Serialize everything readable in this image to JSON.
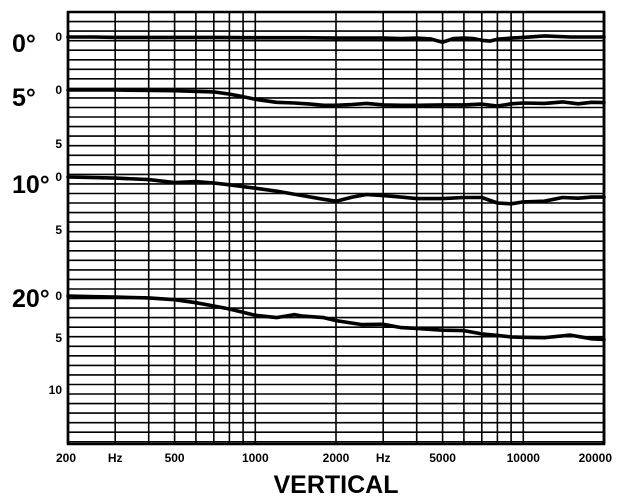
{
  "chart_data": {
    "type": "line",
    "title": "VERTICAL",
    "x_scale": "log",
    "xlim": [
      200,
      20000
    ],
    "x_ticks": [
      {
        "value": 200,
        "label": "200"
      },
      {
        "value": 300,
        "label": "Hz"
      },
      {
        "value": 500,
        "label": "500"
      },
      {
        "value": 1000,
        "label": "1000"
      },
      {
        "value": 2000,
        "label": "2000"
      },
      {
        "value": 3000,
        "label": "Hz"
      },
      {
        "value": 5000,
        "label": "5000"
      },
      {
        "value": 10000,
        "label": "10000"
      },
      {
        "value": 20000,
        "label": "20000"
      }
    ],
    "series": [
      {
        "angle_label": "0°",
        "offset_labels": [
          "0"
        ],
        "x": [
          200,
          250,
          300,
          400,
          500,
          700,
          1000,
          1500,
          2000,
          3000,
          3500,
          4000,
          4500,
          5000,
          5500,
          6000,
          6500,
          7000,
          7500,
          8000,
          9000,
          10000,
          12000,
          15000,
          20000
        ],
        "y": [
          0,
          0,
          0.1,
          0.1,
          0.1,
          0.1,
          0.2,
          0.2,
          0.3,
          0.3,
          0.4,
          0.3,
          0.5,
          1.4,
          0.4,
          0.3,
          0.4,
          0.9,
          1.1,
          0.6,
          0.3,
          0.1,
          -0.3,
          0,
          0
        ]
      },
      {
        "angle_label": "5°",
        "offset_labels": [
          "0",
          "5"
        ],
        "x": [
          200,
          300,
          500,
          700,
          800,
          900,
          1000,
          1200,
          1400,
          1600,
          1800,
          2000,
          2300,
          2600,
          3000,
          3500,
          4000,
          5000,
          6000,
          7000,
          8000,
          9000,
          10000,
          12000,
          14000,
          16000,
          18000,
          20000
        ],
        "y": [
          0,
          0,
          0.2,
          0.5,
          1.1,
          1.8,
          2.5,
          3.3,
          3.5,
          3.8,
          4.1,
          4.1,
          3.9,
          3.6,
          4.0,
          4.1,
          4.1,
          4.0,
          4.0,
          3.8,
          4.3,
          3.7,
          3.5,
          3.6,
          3.2,
          3.7,
          3.3,
          3.4
        ]
      },
      {
        "angle_label": "10°",
        "offset_labels": [
          "0",
          "5"
        ],
        "x": [
          200,
          300,
          400,
          500,
          600,
          700,
          800,
          1000,
          1200,
          1500,
          1800,
          2000,
          2300,
          2600,
          3000,
          3500,
          4000,
          5000,
          6000,
          7000,
          8000,
          9000,
          10000,
          12000,
          14000,
          16000,
          18000,
          20000
        ],
        "y": [
          0,
          0.3,
          0.7,
          1.5,
          1.2,
          1.6,
          2.1,
          3.0,
          3.8,
          5.0,
          6.0,
          6.5,
          5.4,
          4.7,
          5.0,
          5.4,
          5.8,
          5.8,
          5.5,
          5.5,
          7.0,
          7.2,
          6.7,
          6.5,
          5.5,
          5.7,
          5.4,
          5.4
        ]
      },
      {
        "angle_label": "20°",
        "offset_labels": [
          "0",
          "5",
          "10"
        ],
        "x": [
          200,
          250,
          300,
          400,
          500,
          600,
          700,
          800,
          1000,
          1200,
          1400,
          1500,
          1800,
          2000,
          2500,
          3000,
          3500,
          4000,
          5000,
          6000,
          7000,
          8000,
          9000,
          10000,
          12000,
          15000,
          18000,
          20000
        ],
        "y": [
          0,
          0.2,
          0.3,
          0.5,
          1.0,
          1.8,
          2.7,
          3.5,
          5.2,
          5.8,
          5.0,
          5.4,
          5.8,
          6.6,
          7.7,
          7.6,
          8.5,
          8.7,
          9.2,
          9.3,
          10.2,
          10.6,
          11.0,
          11.1,
          11.2,
          10.5,
          11.5,
          11.7
        ]
      }
    ],
    "xlabel": "",
    "ylabel": "",
    "grid": true,
    "legend": "none"
  }
}
